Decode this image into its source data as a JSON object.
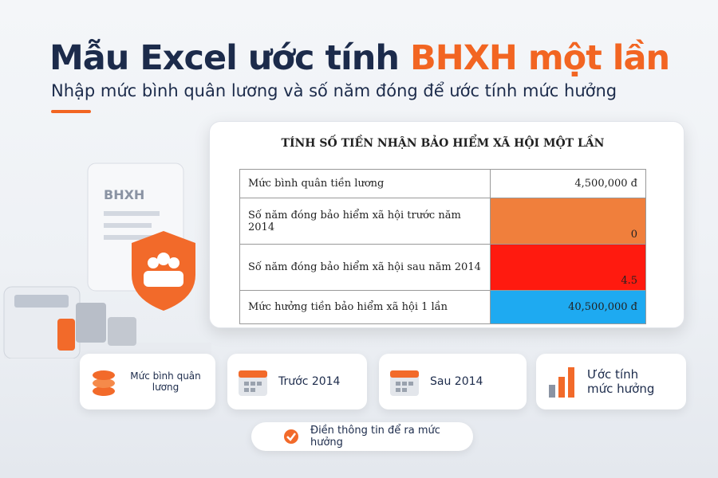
{
  "header": {
    "title_main": "Mẫu Excel ước tính",
    "title_accent": "BHXH một lần",
    "subtitle": "Nhập mức bình quân lương và số năm đóng để ước tính mức hưởng"
  },
  "illustration": {
    "document_label": "BHXH"
  },
  "table": {
    "title": "TÍNH SỐ TIỀN NHẬN BẢO HIỂM XÃ HỘI MỘT LẦN",
    "rows": [
      [
        "Mức bình quân tiền lương",
        "4,500,000 đ"
      ],
      [
        "Số năm đóng bảo hiểm xã hội trước năm 2014",
        "0"
      ],
      [
        "Số năm đóng bảo hiểm xã hội sau năm 2014",
        "4.5"
      ],
      [
        "Mức hưởng tiền bảo hiểm xã hội 1 lần",
        "40,500,000 đ"
      ]
    ]
  },
  "features": [
    "Mức bình quân lương",
    "Trước 2014",
    "Sau 2014",
    "Ước tính mức hưởng"
  ],
  "button": "Điền thông tin để ra mức hưởng"
}
